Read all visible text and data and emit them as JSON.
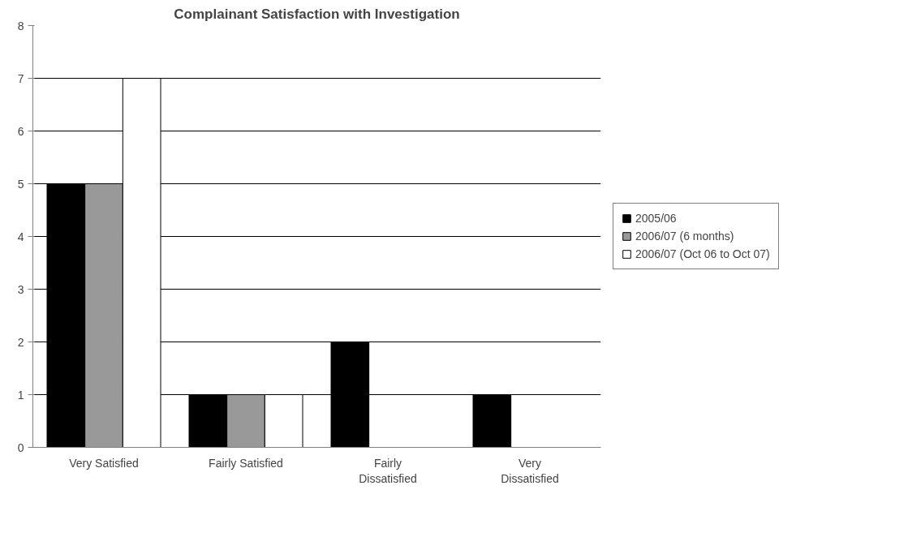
{
  "chart_data": {
    "type": "bar",
    "title": "Complainant Satisfaction with Investigation",
    "categories": [
      "Very Satisfied",
      "Fairly Satisfied",
      "Fairly\nDissatisfied",
      "Very\nDissatisfied"
    ],
    "series": [
      {
        "name": "2005/06",
        "color": "#000000",
        "values": [
          5,
          1,
          2,
          1
        ]
      },
      {
        "name": "2006/07 (6 months)",
        "color": "#999999",
        "values": [
          5,
          1,
          0,
          0
        ]
      },
      {
        "name": "2006/07 (Oct 06 to Oct 07)",
        "color": "#ffffff",
        "values": [
          7,
          1,
          0,
          0
        ]
      }
    ],
    "ylim": [
      0,
      8
    ],
    "yticks": [
      0,
      1,
      2,
      3,
      4,
      5,
      6,
      7,
      8
    ],
    "grid": "y",
    "legend": "right"
  }
}
